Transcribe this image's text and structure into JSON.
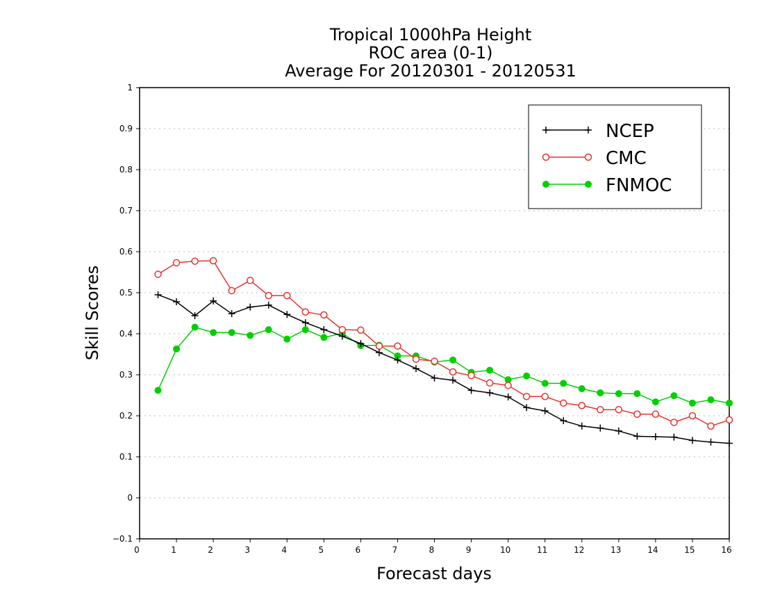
{
  "chart_data": {
    "type": "line",
    "title_lines": [
      "Tropical 1000hPa Height",
      "ROC area (0-1)",
      "Average For 20120301 - 20120531"
    ],
    "xlabel": "Forecast days",
    "ylabel": "Skill Scores",
    "xlim": [
      0,
      16
    ],
    "ylim": [
      -0.1,
      1
    ],
    "x_ticks": [
      0,
      1,
      2,
      3,
      4,
      5,
      6,
      7,
      8,
      9,
      10,
      11,
      12,
      13,
      14,
      15,
      16
    ],
    "y_ticks": [
      -0.1,
      0,
      0.1,
      0.2,
      0.3,
      0.4,
      0.5,
      0.6,
      0.7,
      0.8,
      0.9,
      1
    ],
    "y_tick_labels": [
      "−0.1",
      "0",
      "0.1",
      "0.2",
      "0.3",
      "0.4",
      "0.5",
      "0.6",
      "0.7",
      "0.8",
      "0.9",
      "1"
    ],
    "grid": "horizontal dotted",
    "legend_position": "top-right",
    "x": [
      0.5,
      1,
      1.5,
      2,
      2.5,
      3,
      3.5,
      4,
      4.5,
      5,
      5.5,
      6,
      6.5,
      7,
      7.5,
      8,
      8.5,
      9,
      9.5,
      10,
      10.5,
      11,
      11.5,
      12,
      12.5,
      13,
      13.5,
      14,
      14.5,
      15,
      15.5,
      16
    ],
    "series": [
      {
        "name": "NCEP",
        "color": "#000000",
        "marker": "plus",
        "values": [
          0.495,
          0.478,
          0.444,
          0.48,
          0.449,
          0.465,
          0.47,
          0.447,
          0.427,
          0.41,
          0.394,
          0.376,
          0.354,
          0.336,
          0.315,
          0.292,
          0.287,
          0.262,
          0.256,
          0.246,
          0.22,
          0.212,
          0.188,
          0.175,
          0.17,
          0.163,
          0.15,
          0.149,
          0.148,
          0.14,
          0.136,
          0.133
        ]
      },
      {
        "name": "CMC",
        "color": "#e8322e",
        "marker": "open-circle",
        "values": [
          0.545,
          0.573,
          0.577,
          0.578,
          0.505,
          0.53,
          0.493,
          0.493,
          0.453,
          0.446,
          0.41,
          0.409,
          0.37,
          0.37,
          0.338,
          0.333,
          0.307,
          0.298,
          0.28,
          0.274,
          0.247,
          0.247,
          0.231,
          0.225,
          0.215,
          0.215,
          0.204,
          0.204,
          0.184,
          0.2,
          0.175,
          0.19
        ]
      },
      {
        "name": "FNMOC",
        "color": "#00d000",
        "marker": "filled-circle",
        "values": [
          0.262,
          0.363,
          0.416,
          0.403,
          0.403,
          0.396,
          0.41,
          0.387,
          0.41,
          0.391,
          0.401,
          0.371,
          0.372,
          0.346,
          0.346,
          0.331,
          0.336,
          0.306,
          0.311,
          0.288,
          0.297,
          0.279,
          0.279,
          0.266,
          0.256,
          0.254,
          0.254,
          0.234,
          0.249,
          0.231,
          0.239,
          0.231
        ]
      }
    ]
  }
}
